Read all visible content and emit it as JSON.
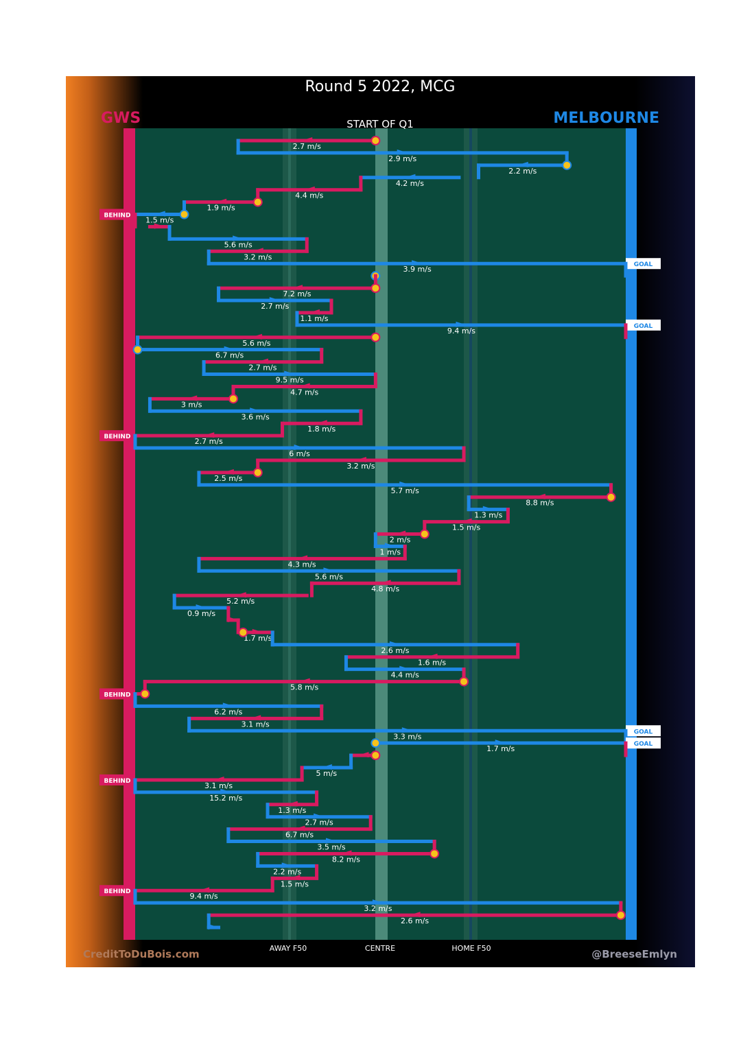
{
  "chart_data": {
    "type": "line",
    "title": "Round 5 2022, MCG",
    "subtitle": "START OF Q1",
    "away_team": "GWS",
    "home_team": "MELBOURNE",
    "x_ticks": [
      "AWAY F50",
      "CENTRE",
      "HOME F50"
    ],
    "x_range": [
      0,
      100
    ],
    "colors": {
      "away": "#d81b60",
      "home": "#1e88e5",
      "field": "#0b4a3c",
      "marker": "#f6c21b"
    },
    "footer_left": "CreditToDuBois.com",
    "footer_right": "@BreeseEmlyn",
    "chains": [
      {
        "team": "away",
        "start": 49,
        "end": 21,
        "speed": "2.7 m/s",
        "start_dot": true
      },
      {
        "team": "home",
        "start": 21,
        "end": 88,
        "speed": "2.9 m/s"
      },
      {
        "team": "home",
        "start": 88,
        "end": 70,
        "speed": "2.2 m/s",
        "start_dot": true
      },
      {
        "team": "home",
        "start": 66,
        "end": 46,
        "speed": "4.2 m/s"
      },
      {
        "team": "away",
        "start": 46,
        "end": 25,
        "speed": "4.4 m/s"
      },
      {
        "team": "away",
        "start": 25,
        "end": 10,
        "speed": "1.9 m/s",
        "start_dot": true
      },
      {
        "team": "home",
        "start": 10,
        "end": 0,
        "speed": "1.5 m/s",
        "start_dot": true,
        "outcome": "BEHIND",
        "outcome_team": "away"
      },
      {
        "team": "away",
        "start": 3,
        "end": 7,
        "speed": ""
      },
      {
        "team": "home",
        "start": 7,
        "end": 35,
        "speed": "5.6 m/s"
      },
      {
        "team": "away",
        "start": 35,
        "end": 15,
        "speed": "3.2 m/s"
      },
      {
        "team": "home",
        "start": 15,
        "end": 100,
        "speed": "3.9 m/s",
        "outcome": "GOAL",
        "outcome_team": "home"
      },
      {
        "team": "home",
        "start": 49,
        "end": 49,
        "speed": "",
        "start_dot": true
      },
      {
        "team": "away",
        "start": 49,
        "end": 17,
        "speed": "7.2 m/s",
        "start_dot": true
      },
      {
        "team": "home",
        "start": 17,
        "end": 40,
        "speed": "2.7 m/s"
      },
      {
        "team": "away",
        "start": 40,
        "end": 33,
        "speed": "1.1 m/s"
      },
      {
        "team": "home",
        "start": 33,
        "end": 100,
        "speed": "9.4 m/s",
        "outcome": "GOAL",
        "outcome_team": "home"
      },
      {
        "team": "away",
        "start": 49,
        "end": 0.5,
        "speed": "5.6 m/s",
        "start_dot": true
      },
      {
        "team": "home",
        "start": 0.5,
        "end": 38,
        "speed": "6.7 m/s",
        "start_dot": true
      },
      {
        "team": "away",
        "start": 38,
        "end": 14,
        "speed": "2.7 m/s"
      },
      {
        "team": "home",
        "start": 14,
        "end": 49,
        "speed": "9.5 m/s"
      },
      {
        "team": "away",
        "start": 49,
        "end": 20,
        "speed": "4.7 m/s"
      },
      {
        "team": "away",
        "start": 20,
        "end": 3,
        "speed": "3 m/s",
        "start_dot": true
      },
      {
        "team": "home",
        "start": 3,
        "end": 46,
        "speed": "3.6 m/s"
      },
      {
        "team": "away",
        "start": 46,
        "end": 30,
        "speed": "1.8 m/s"
      },
      {
        "team": "away",
        "start": 30,
        "end": 0,
        "speed": "2.7 m/s",
        "outcome": "BEHIND",
        "outcome_team": "away"
      },
      {
        "team": "home",
        "start": 0,
        "end": 67,
        "speed": "6 m/s"
      },
      {
        "team": "away",
        "start": 67,
        "end": 25,
        "speed": "3.2 m/s"
      },
      {
        "team": "away",
        "start": 25,
        "end": 13,
        "speed": "2.5 m/s",
        "start_dot": true
      },
      {
        "team": "home",
        "start": 13,
        "end": 97,
        "speed": "5.7 m/s"
      },
      {
        "team": "away",
        "start": 97,
        "end": 68,
        "speed": "8.8 m/s",
        "start_dot": true
      },
      {
        "team": "home",
        "start": 68,
        "end": 76,
        "speed": "1.3 m/s"
      },
      {
        "team": "away",
        "start": 76,
        "end": 59,
        "speed": "1.5 m/s"
      },
      {
        "team": "away",
        "start": 59,
        "end": 49,
        "speed": "2 m/s",
        "start_dot": true
      },
      {
        "team": "home",
        "start": 49,
        "end": 55,
        "speed": "1 m/s"
      },
      {
        "team": "away",
        "start": 55,
        "end": 13,
        "speed": "4.3 m/s"
      },
      {
        "team": "home",
        "start": 13,
        "end": 66,
        "speed": "5.6 m/s"
      },
      {
        "team": "away",
        "start": 66,
        "end": 36,
        "speed": "4.8 m/s"
      },
      {
        "team": "away",
        "start": 35,
        "end": 8,
        "speed": "5.2 m/s"
      },
      {
        "team": "home",
        "start": 8,
        "end": 19,
        "speed": "0.9 m/s"
      },
      {
        "team": "away",
        "start": 19,
        "end": 21,
        "speed": ""
      },
      {
        "team": "away",
        "start": 22,
        "end": 28,
        "speed": "1.7 m/s",
        "start_dot": true
      },
      {
        "team": "home",
        "start": 28,
        "end": 78,
        "speed": "2.6 m/s"
      },
      {
        "team": "away",
        "start": 78,
        "end": 43,
        "speed": "1.6 m/s"
      },
      {
        "team": "home",
        "start": 43,
        "end": 67,
        "speed": "4.4 m/s"
      },
      {
        "team": "away",
        "start": 67,
        "end": 2,
        "speed": "5.8 m/s",
        "start_dot": true
      },
      {
        "team": "away",
        "start": 2,
        "end": 0,
        "speed": "",
        "start_dot": true,
        "outcome": "BEHIND",
        "outcome_team": "away"
      },
      {
        "team": "home",
        "start": 0,
        "end": 38,
        "speed": "6.2 m/s"
      },
      {
        "team": "away",
        "start": 38,
        "end": 11,
        "speed": "3.1 m/s"
      },
      {
        "team": "home",
        "start": 11,
        "end": 100,
        "speed": "3.3 m/s",
        "outcome": "GOAL",
        "outcome_team": "home"
      },
      {
        "team": "home",
        "start": 49,
        "end": 100,
        "speed": "1.7 m/s",
        "start_dot": true,
        "outcome": "GOAL",
        "outcome_team": "home"
      },
      {
        "team": "away",
        "start": 49,
        "end": 44,
        "speed": "",
        "start_dot": true
      },
      {
        "team": "home",
        "start": 44,
        "end": 34,
        "speed": "5 m/s"
      },
      {
        "team": "away",
        "start": 34,
        "end": 0,
        "speed": "3.1 m/s",
        "outcome": "BEHIND",
        "outcome_team": "away"
      },
      {
        "team": "home",
        "start": 0,
        "end": 37,
        "speed": "15.2 m/s"
      },
      {
        "team": "away",
        "start": 37,
        "end": 27,
        "speed": "1.3 m/s"
      },
      {
        "team": "home",
        "start": 27,
        "end": 48,
        "speed": "2.7 m/s"
      },
      {
        "team": "away",
        "start": 48,
        "end": 19,
        "speed": "6.7 m/s"
      },
      {
        "team": "home",
        "start": 19,
        "end": 61,
        "speed": "3.5 m/s"
      },
      {
        "team": "away",
        "start": 61,
        "end": 25,
        "speed": "8.2 m/s",
        "start_dot": true
      },
      {
        "team": "home",
        "start": 25,
        "end": 37,
        "speed": "2.2 m/s"
      },
      {
        "team": "away",
        "start": 37,
        "end": 28,
        "speed": "1.5 m/s"
      },
      {
        "team": "away",
        "start": 28,
        "end": 0,
        "speed": "9.4 m/s",
        "outcome": "BEHIND",
        "outcome_team": "away"
      },
      {
        "team": "home",
        "start": 0,
        "end": 99,
        "speed": "3.2 m/s"
      },
      {
        "team": "away",
        "start": 99,
        "end": 15,
        "speed": "2.6 m/s",
        "start_dot": true
      },
      {
        "team": "home",
        "start": 15,
        "end": 17,
        "speed": ""
      }
    ]
  }
}
